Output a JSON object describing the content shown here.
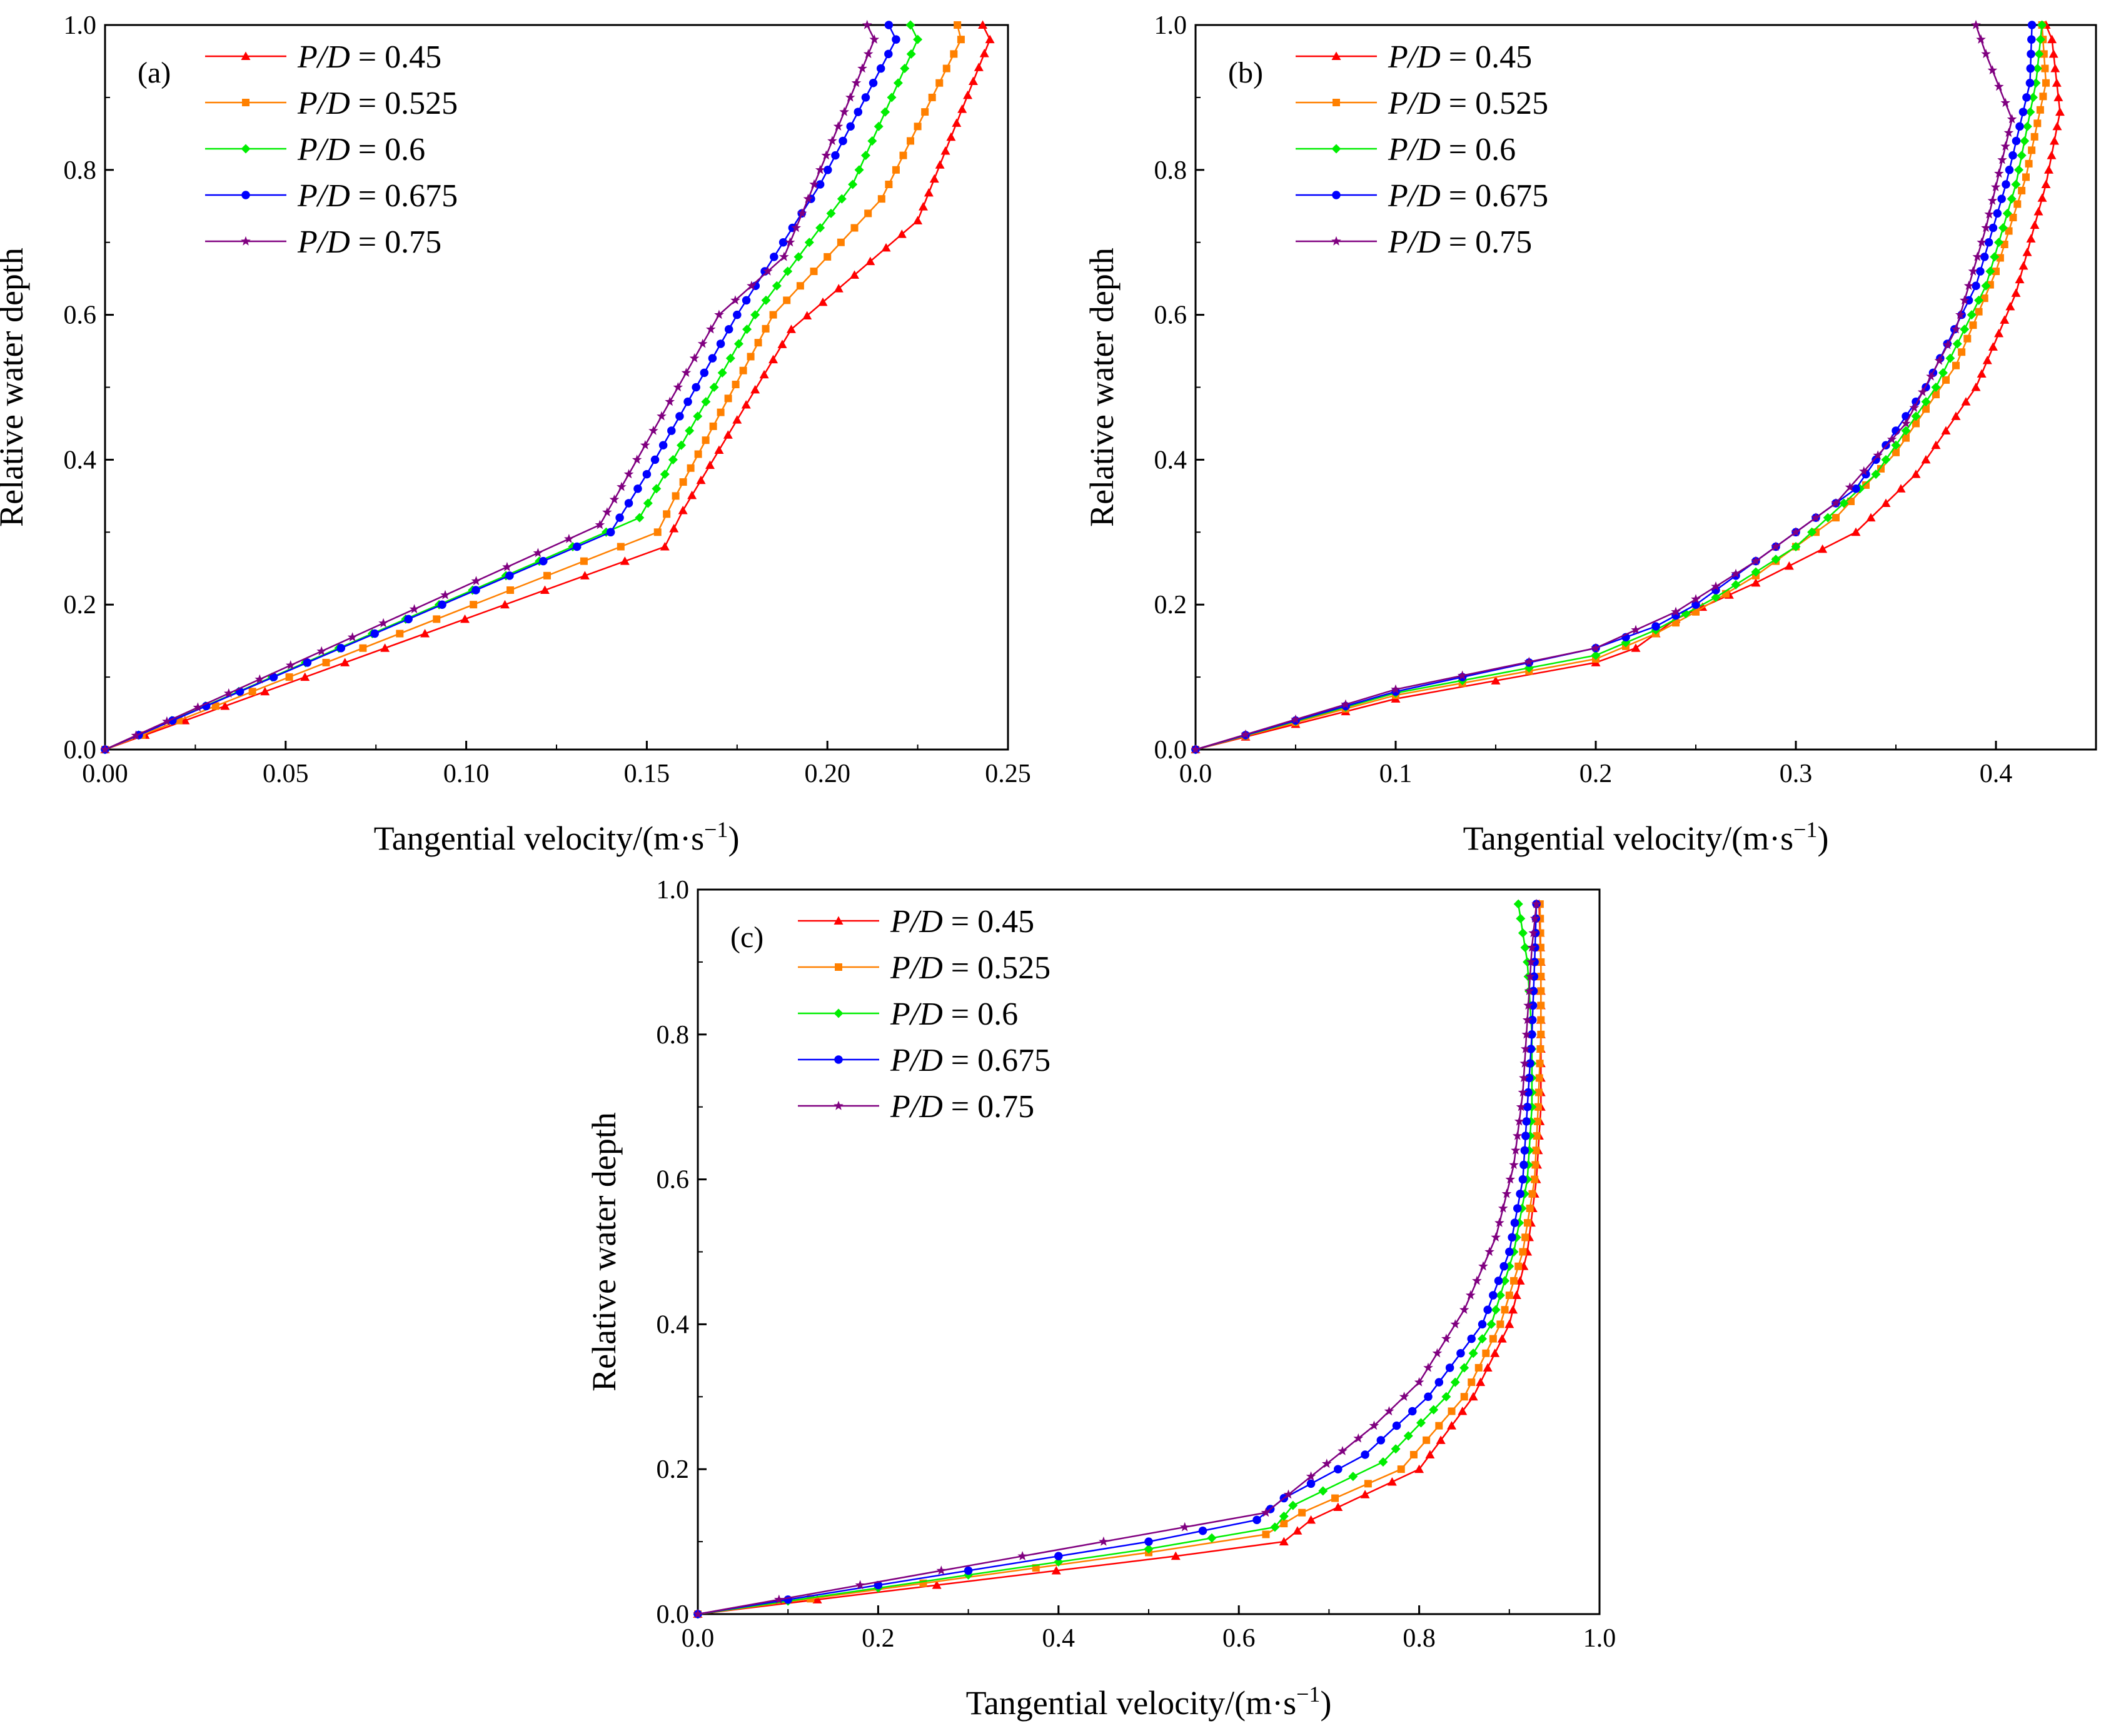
{
  "legend": {
    "var": "P/D",
    "entries": [
      {
        "value": "0.45",
        "color": "#ff0000",
        "marker": "triangle"
      },
      {
        "value": "0.525",
        "color": "#ff8000",
        "marker": "square"
      },
      {
        "value": "0.6",
        "color": "#00ee00",
        "marker": "diamond"
      },
      {
        "value": "0.675",
        "color": "#0000ff",
        "marker": "circle"
      },
      {
        "value": "0.75",
        "color": "#800080",
        "marker": "star"
      }
    ]
  },
  "chart_data": [
    {
      "type": "line",
      "panel": "(a)",
      "xlabel": "Tangential velocity/(m·s",
      "xlabel_sup": "−1",
      "xlabel_end": ")",
      "ylabel": "Relative water depth",
      "xlim": [
        0,
        0.25
      ],
      "ylim": [
        0,
        1
      ],
      "xticks": [
        "0.00",
        "0.05",
        "0.10",
        "0.15",
        "0.20",
        "0.25"
      ],
      "yticks": [
        "0.0",
        "0.2",
        "0.4",
        "0.6",
        "0.8",
        "1.0"
      ],
      "series": [
        {
          "name": "P/D = 0.45",
          "points": [
            [
              0,
              0
            ],
            [
              0.155,
              0.28
            ],
            [
              0.16,
              0.33
            ],
            [
              0.19,
              0.58
            ],
            [
              0.225,
              0.73
            ],
            [
              0.245,
              0.98
            ],
            [
              0.243,
              1.0
            ]
          ]
        },
        {
          "name": "P/D = 0.525",
          "points": [
            [
              0,
              0
            ],
            [
              0.153,
              0.3
            ],
            [
              0.158,
              0.35
            ],
            [
              0.185,
              0.6
            ],
            [
              0.215,
              0.76
            ],
            [
              0.237,
              0.98
            ],
            [
              0.236,
              1.0
            ]
          ]
        },
        {
          "name": "P/D = 0.6",
          "points": [
            [
              0,
              0
            ],
            [
              0.148,
              0.32
            ],
            [
              0.155,
              0.38
            ],
            [
              0.18,
              0.6
            ],
            [
              0.207,
              0.78
            ],
            [
              0.225,
              0.98
            ],
            [
              0.223,
              1.0
            ]
          ]
        },
        {
          "name": "P/D = 0.675",
          "points": [
            [
              0,
              0
            ],
            [
              0.14,
              0.3
            ],
            [
              0.15,
              0.38
            ],
            [
              0.175,
              0.6
            ],
            [
              0.198,
              0.78
            ],
            [
              0.219,
              0.98
            ],
            [
              0.217,
              1.0
            ]
          ]
        },
        {
          "name": "P/D = 0.75",
          "points": [
            [
              0,
              0
            ],
            [
              0.137,
              0.31
            ],
            [
              0.145,
              0.38
            ],
            [
              0.17,
              0.6
            ],
            [
              0.188,
              0.68
            ],
            [
              0.213,
              0.98
            ],
            [
              0.211,
              1.0
            ]
          ]
        }
      ]
    },
    {
      "type": "line",
      "panel": "(b)",
      "xlabel": "Tangential velocity/(m·s",
      "xlabel_sup": "−1",
      "xlabel_end": ")",
      "ylabel": "Relative water depth",
      "xlim": [
        0,
        0.45
      ],
      "ylim": [
        0,
        1
      ],
      "xticks": [
        "0.0",
        "0.1",
        "0.2",
        "0.3",
        "0.4"
      ],
      "yticks": [
        "0.0",
        "0.2",
        "0.4",
        "0.6",
        "0.8",
        "1.0"
      ],
      "series": [
        {
          "name": "P/D = 0.45",
          "points": [
            [
              0,
              0
            ],
            [
              0.1,
              0.07
            ],
            [
              0.2,
              0.12
            ],
            [
              0.22,
              0.14
            ],
            [
              0.24,
              0.18
            ],
            [
              0.28,
              0.23
            ],
            [
              0.33,
              0.3
            ],
            [
              0.36,
              0.38
            ],
            [
              0.39,
              0.5
            ],
            [
              0.41,
              0.63
            ],
            [
              0.425,
              0.78
            ],
            [
              0.432,
              0.88
            ],
            [
              0.428,
              0.98
            ],
            [
              0.425,
              1.0
            ]
          ]
        },
        {
          "name": "P/D = 0.525",
          "points": [
            [
              0,
              0
            ],
            [
              0.1,
              0.075
            ],
            [
              0.2,
              0.125
            ],
            [
              0.23,
              0.16
            ],
            [
              0.25,
              0.19
            ],
            [
              0.28,
              0.24
            ],
            [
              0.32,
              0.32
            ],
            [
              0.35,
              0.41
            ],
            [
              0.38,
              0.53
            ],
            [
              0.4,
              0.66
            ],
            [
              0.415,
              0.79
            ],
            [
              0.425,
              0.92
            ],
            [
              0.423,
              1.0
            ]
          ]
        },
        {
          "name": "P/D = 0.6",
          "points": [
            [
              0,
              0
            ],
            [
              0.1,
              0.078
            ],
            [
              0.2,
              0.13
            ],
            [
              0.23,
              0.165
            ],
            [
              0.26,
              0.21
            ],
            [
              0.3,
              0.28
            ],
            [
              0.34,
              0.38
            ],
            [
              0.37,
              0.5
            ],
            [
              0.395,
              0.64
            ],
            [
              0.41,
              0.78
            ],
            [
              0.42,
              0.92
            ],
            [
              0.423,
              1.0
            ]
          ]
        },
        {
          "name": "P/D = 0.675",
          "points": [
            [
              0,
              0
            ],
            [
              0.1,
              0.08
            ],
            [
              0.2,
              0.14
            ],
            [
              0.23,
              0.17
            ],
            [
              0.25,
              0.2
            ],
            [
              0.29,
              0.28
            ],
            [
              0.33,
              0.36
            ],
            [
              0.365,
              0.5
            ],
            [
              0.39,
              0.64
            ],
            [
              0.405,
              0.78
            ],
            [
              0.417,
              0.92
            ],
            [
              0.418,
              1.0
            ]
          ]
        },
        {
          "name": "P/D = 0.75",
          "points": [
            [
              0,
              0
            ],
            [
              0.1,
              0.083
            ],
            [
              0.2,
              0.14
            ],
            [
              0.24,
              0.19
            ],
            [
              0.28,
              0.26
            ],
            [
              0.32,
              0.34
            ],
            [
              0.355,
              0.45
            ],
            [
              0.38,
              0.58
            ],
            [
              0.395,
              0.72
            ],
            [
              0.408,
              0.87
            ],
            [
              0.395,
              0.96
            ],
            [
              0.39,
              1.0
            ]
          ]
        }
      ]
    },
    {
      "type": "line",
      "panel": "(c)",
      "xlabel": "Tangential velocity/(m·s",
      "xlabel_sup": "−1",
      "xlabel_end": ")",
      "ylabel": "Relative water depth",
      "xlim": [
        0,
        1.0
      ],
      "ylim": [
        0,
        1
      ],
      "xticks": [
        "0.0",
        "0.2",
        "0.4",
        "0.6",
        "0.8",
        "1.0"
      ],
      "yticks": [
        "0.0",
        "0.2",
        "0.4",
        "0.6",
        "0.8",
        "1.0"
      ],
      "series": [
        {
          "name": "P/D = 0.45",
          "points": [
            [
              0,
              0
            ],
            [
              0.53,
              0.08
            ],
            [
              0.65,
              0.1
            ],
            [
              0.68,
              0.13
            ],
            [
              0.8,
              0.2
            ],
            [
              0.86,
              0.3
            ],
            [
              0.9,
              0.4
            ],
            [
              0.92,
              0.5
            ],
            [
              0.93,
              0.6
            ],
            [
              0.935,
              0.7
            ],
            [
              0.935,
              0.8
            ],
            [
              0.935,
              0.9
            ],
            [
              0.933,
              0.98
            ]
          ]
        },
        {
          "name": "P/D = 0.525",
          "points": [
            [
              0,
              0
            ],
            [
              0.5,
              0.085
            ],
            [
              0.63,
              0.11
            ],
            [
              0.67,
              0.14
            ],
            [
              0.78,
              0.2
            ],
            [
              0.85,
              0.3
            ],
            [
              0.89,
              0.4
            ],
            [
              0.915,
              0.5
            ],
            [
              0.928,
              0.6
            ],
            [
              0.932,
              0.7
            ],
            [
              0.935,
              0.8
            ],
            [
              0.935,
              0.9
            ],
            [
              0.934,
              0.98
            ]
          ]
        },
        {
          "name": "P/D = 0.6",
          "points": [
            [
              0,
              0
            ],
            [
              0.5,
              0.09
            ],
            [
              0.64,
              0.12
            ],
            [
              0.66,
              0.15
            ],
            [
              0.76,
              0.21
            ],
            [
              0.83,
              0.3
            ],
            [
              0.88,
              0.4
            ],
            [
              0.905,
              0.5
            ],
            [
              0.92,
              0.6
            ],
            [
              0.925,
              0.7
            ],
            [
              0.925,
              0.8
            ],
            [
              0.92,
              0.9
            ],
            [
              0.91,
              0.98
            ]
          ]
        },
        {
          "name": "P/D = 0.675",
          "points": [
            [
              0,
              0
            ],
            [
              0.5,
              0.1
            ],
            [
              0.62,
              0.13
            ],
            [
              0.65,
              0.16
            ],
            [
              0.74,
              0.22
            ],
            [
              0.81,
              0.3
            ],
            [
              0.87,
              0.4
            ],
            [
              0.9,
              0.5
            ],
            [
              0.915,
              0.6
            ],
            [
              0.92,
              0.7
            ],
            [
              0.925,
              0.8
            ],
            [
              0.928,
              0.9
            ],
            [
              0.93,
              0.98
            ]
          ]
        },
        {
          "name": "P/D = 0.75",
          "points": [
            [
              0,
              0
            ],
            [
              0.45,
              0.1
            ],
            [
              0.63,
              0.14
            ],
            [
              0.68,
              0.19
            ],
            [
              0.75,
              0.26
            ],
            [
              0.8,
              0.32
            ],
            [
              0.85,
              0.42
            ],
            [
              0.885,
              0.52
            ],
            [
              0.905,
              0.62
            ],
            [
              0.915,
              0.72
            ],
            [
              0.92,
              0.82
            ],
            [
              0.925,
              0.92
            ],
            [
              0.93,
              0.98
            ]
          ]
        }
      ]
    }
  ]
}
